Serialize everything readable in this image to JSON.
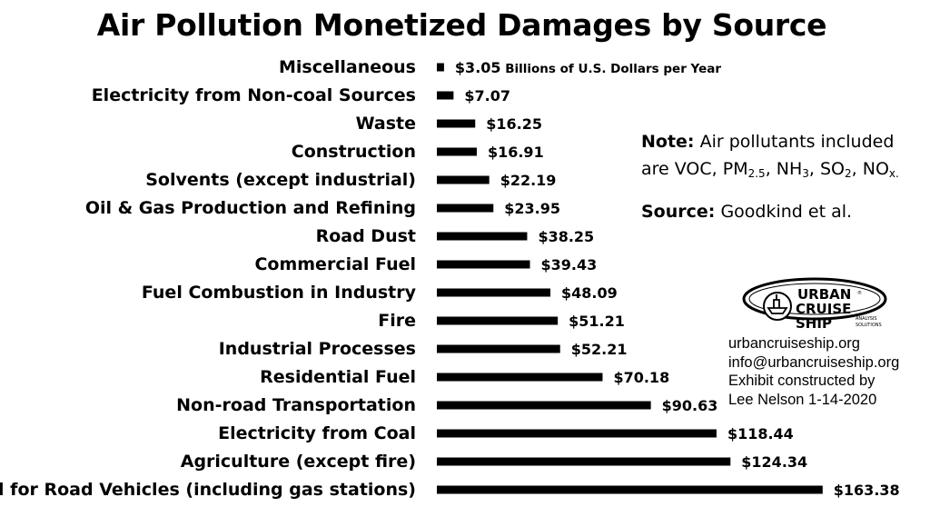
{
  "chart_data": {
    "type": "bar",
    "orientation": "horizontal",
    "title": "Air Pollution Monetized Damages by Source",
    "categories": [
      "Miscellaneous",
      "Electricity from Non-coal Sources",
      "Waste",
      "Construction",
      "Solvents (except industrial)",
      "Oil & Gas Production and Refining",
      "Road Dust",
      "Commercial Fuel",
      "Fuel Combustion in Industry",
      "Fire",
      "Industrial Processes",
      "Residential Fuel",
      "Non-road Transportation",
      "Electricity from Coal",
      "Agriculture (except fire)",
      "Fuel for Road Vehicles (including gas stations)"
    ],
    "values": [
      3.05,
      7.07,
      16.25,
      16.91,
      22.19,
      23.95,
      38.25,
      39.43,
      48.09,
      51.21,
      52.21,
      70.18,
      90.63,
      118.44,
      124.34,
      163.38
    ],
    "value_labels": [
      "$3.05",
      "$7.07",
      "$16.25",
      "$16.91",
      "$22.19",
      "$23.95",
      "$38.25",
      "$39.43",
      "$48.09",
      "$51.21",
      "$52.21",
      "$70.18",
      "$90.63",
      "$118.44",
      "$124.34",
      "$163.38"
    ],
    "unit_annotation": "Billions of U.S. Dollars per Year",
    "bar_color": "#000000",
    "xlabel": "",
    "ylabel": "",
    "grid": false,
    "legend": "none"
  },
  "note": {
    "label": "Note:",
    "text_before": "Air pollutants included are VOC, PM",
    "pm_sub": "2.5",
    "sep1": ", NH",
    "nh_sub": "3",
    "sep2": ", SO",
    "so_sub": "2",
    "sep3": ", NO",
    "no_sub": "x."
  },
  "source": {
    "label": "Source:",
    "text": "Goodkind et al."
  },
  "logo": {
    "line1": "URBAN",
    "line2": "CRUISE",
    "line3": "SHIP",
    "tag1": "ANALYSIS",
    "tag2": "SOLUTIONS",
    "reg": "®"
  },
  "credits": {
    "website": "urbancruiseship.org",
    "email": "info@urbancruiseship.org",
    "line3": "Exhibit constructed by",
    "line4": "Lee Nelson 1-14-2020"
  }
}
